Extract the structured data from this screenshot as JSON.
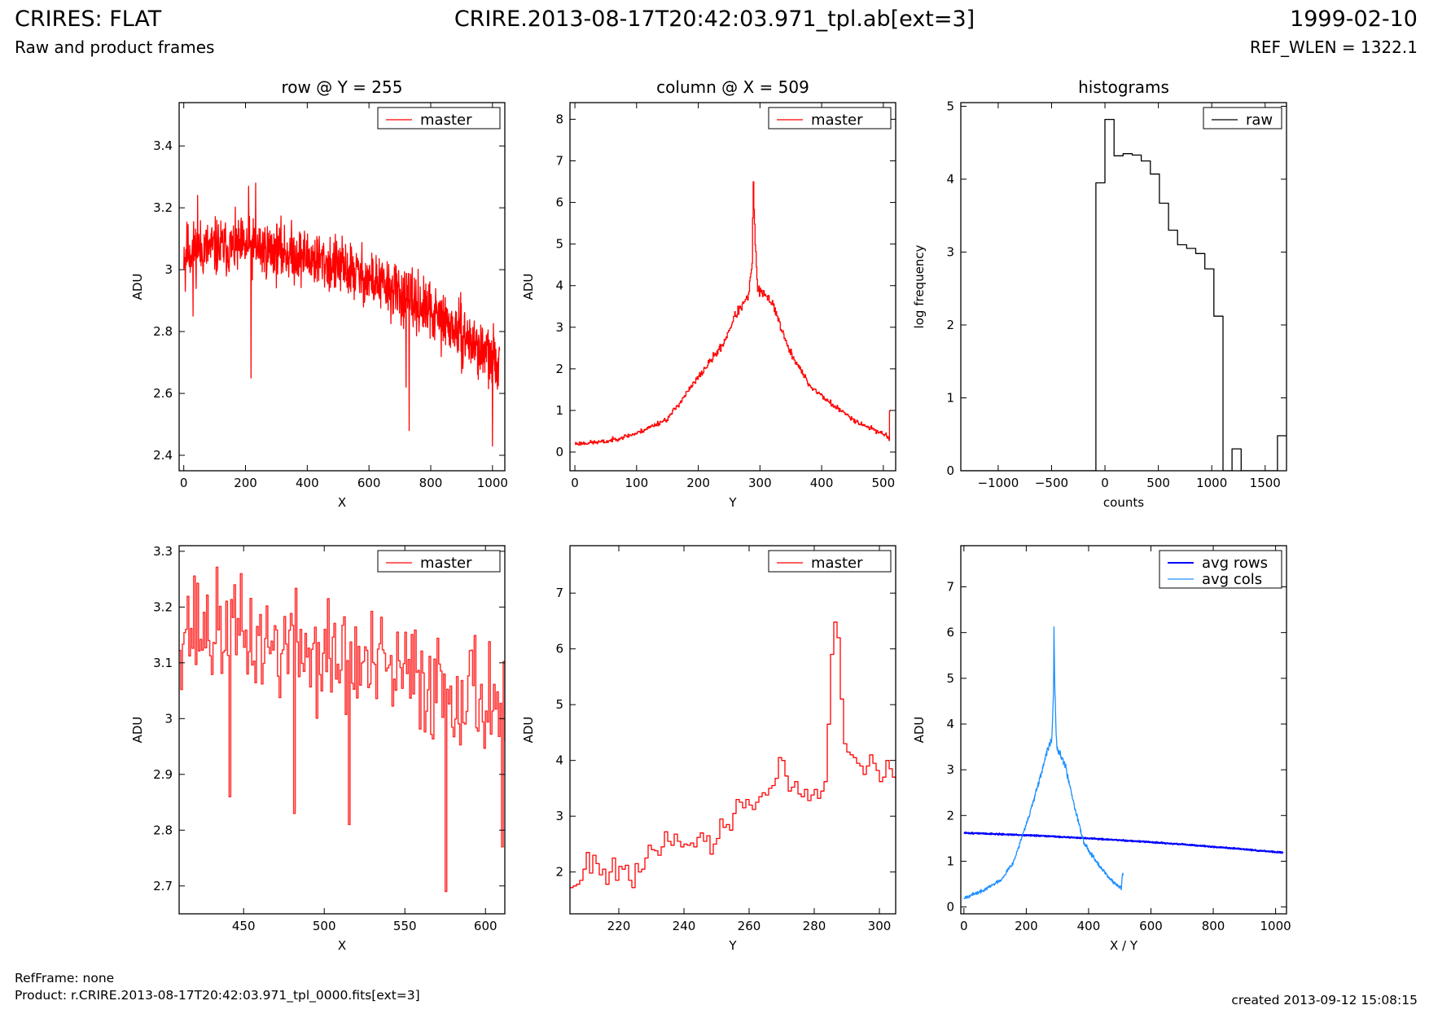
{
  "header": {
    "title_left": "CRIRES: FLAT",
    "title_center": "CRIRE.2013-08-17T20:42:03.971_tpl.ab[ext=3]",
    "title_right": "1999-02-10",
    "subtitle_left": "Raw and product frames",
    "subtitle_right": "REF_WLEN = 1322.1"
  },
  "footer": {
    "ref_frame": "RefFrame: none",
    "product": "Product: r.CRIRE.2013-08-17T20:42:03.971_tpl_0000.fits[ext=3]",
    "created": "created 2013-09-12 15:08:15"
  },
  "colors": {
    "red": "#ff0000",
    "black": "#000000",
    "blue": "#0000ff",
    "lightblue": "#1e90ff"
  },
  "chart_data": [
    {
      "id": "p1",
      "type": "line",
      "title": "row @ Y = 255",
      "xlabel": "X",
      "ylabel": "ADU",
      "xlim": [
        -15,
        1040
      ],
      "ylim": [
        2.35,
        3.54
      ],
      "xticks": [
        0,
        200,
        400,
        600,
        800,
        1000
      ],
      "yticks": [
        2.4,
        2.6,
        2.8,
        3.0,
        3.2,
        3.4
      ],
      "legend": "top-right",
      "series": [
        {
          "name": "master",
          "color": "#ff0000",
          "lw": 1.3,
          "gen": {
            "kind": "poly",
            "x0": 0,
            "x1": 1023,
            "n": 1024,
            "coef": [
              3.06,
              0.00015,
              -5e-07
            ],
            "noise": 0.08,
            "seed": 11,
            "spikes": [
              [
                5,
                2.93
              ],
              [
                30,
                2.85
              ],
              [
                45,
                3.24
              ],
              [
                210,
                3.27
              ],
              [
                218,
                2.65
              ],
              [
                233,
                3.28
              ],
              [
                720,
                2.62
              ],
              [
                730,
                2.48
              ],
              [
                1000,
                2.43
              ],
              [
                1022,
                2.75
              ]
            ]
          }
        }
      ]
    },
    {
      "id": "p2",
      "type": "line",
      "title": "column @ X = 509",
      "xlabel": "Y",
      "ylabel": "ADU",
      "xlim": [
        -8,
        520
      ],
      "ylim": [
        -0.45,
        8.4
      ],
      "xticks": [
        0,
        100,
        200,
        300,
        400,
        500
      ],
      "yticks": [
        0,
        1,
        2,
        3,
        4,
        5,
        6,
        7,
        8
      ],
      "legend": "top-right",
      "series": [
        {
          "name": "master",
          "color": "#ff0000",
          "lw": 1.3,
          "step": true,
          "gen": {
            "kind": "peak",
            "x0": 0,
            "x1": 511,
            "n": 512,
            "noise": 0.1,
            "seed": 23,
            "anchors": [
              [
                0,
                0.2
              ],
              [
                50,
                0.25
              ],
              [
                100,
                0.45
              ],
              [
                150,
                0.8
              ],
              [
                200,
                1.8
              ],
              [
                240,
                2.6
              ],
              [
                260,
                3.3
              ],
              [
                280,
                3.7
              ],
              [
                287,
                4.5
              ],
              [
                289,
                6.45
              ],
              [
                292,
                5.0
              ],
              [
                296,
                3.9
              ],
              [
                320,
                3.6
              ],
              [
                345,
                2.5
              ],
              [
                380,
                1.6
              ],
              [
                420,
                1.1
              ],
              [
                460,
                0.7
              ],
              [
                505,
                0.4
              ],
              [
                509,
                0.3
              ],
              [
                510,
                1.0
              ],
              [
                511,
                1.0
              ]
            ]
          }
        }
      ]
    },
    {
      "id": "p3",
      "type": "step",
      "title": "histograms",
      "xlabel": "counts",
      "ylabel": "log frequency",
      "xlim": [
        -1350,
        1700
      ],
      "ylim": [
        0,
        5.05
      ],
      "xticks": [
        -1000,
        -500,
        0,
        500,
        1000,
        1500
      ],
      "yticks": [
        0,
        1,
        2,
        3,
        4,
        5
      ],
      "legend": "top-right",
      "series": [
        {
          "name": "raw",
          "color": "#000000",
          "lw": 1.3,
          "x": [
            -1350,
            -85,
            -85,
            0,
            0,
            85,
            85,
            170,
            170,
            255,
            255,
            340,
            340,
            425,
            425,
            510,
            510,
            595,
            595,
            680,
            680,
            765,
            765,
            850,
            850,
            935,
            935,
            1020,
            1020,
            1105,
            1105,
            1190,
            1190,
            1275,
            1275,
            1360,
            1360,
            1615,
            1615,
            1700
          ],
          "y": [
            0,
            0,
            3.95,
            3.95,
            4.82,
            4.82,
            4.32,
            4.32,
            4.35,
            4.35,
            4.33,
            4.33,
            4.25,
            4.25,
            4.07,
            4.07,
            3.67,
            3.67,
            3.3,
            3.3,
            3.1,
            3.1,
            3.05,
            3.05,
            2.98,
            2.98,
            2.77,
            2.77,
            2.12,
            2.12,
            0,
            0,
            0.3,
            0.3,
            0,
            0,
            0,
            0,
            0.48,
            0.48
          ]
        }
      ]
    },
    {
      "id": "p4",
      "type": "line",
      "xlabel": "X",
      "ylabel": "ADU",
      "xlim": [
        410,
        612
      ],
      "ylim": [
        2.65,
        3.31
      ],
      "xticks": [
        450,
        500,
        550,
        600
      ],
      "yticks": [
        2.7,
        2.8,
        2.9,
        3.0,
        3.1,
        3.2,
        3.3
      ],
      "legend": "top-right",
      "series": [
        {
          "name": "master",
          "color": "#ff3030",
          "lw": 1.5,
          "step": true,
          "gen": {
            "kind": "poly",
            "x0": 410,
            "x1": 612,
            "n": 203,
            "coef": [
              3.17,
              -0.00068,
              0
            ],
            "noise": 0.09,
            "seed": 37,
            "xoffset": 410,
            "spikes": [
              [
                414,
                3.16
              ],
              [
                441,
                2.86
              ],
              [
                453,
                3.12
              ],
              [
                481,
                2.83
              ],
              [
                485,
                3.16
              ],
              [
                515,
                2.81
              ],
              [
                575,
                2.69
              ],
              [
                610,
                2.77
              ]
            ]
          }
        }
      ]
    },
    {
      "id": "p5",
      "type": "line",
      "xlabel": "Y",
      "ylabel": "ADU",
      "xlim": [
        205,
        305
      ],
      "ylim": [
        1.25,
        7.85
      ],
      "xticks": [
        220,
        240,
        260,
        280,
        300
      ],
      "yticks": [
        2,
        3,
        4,
        5,
        6,
        7
      ],
      "legend": "top-right",
      "series": [
        {
          "name": "master",
          "color": "#ff0000",
          "lw": 1.3,
          "step": true,
          "x": [
            205,
            206,
            207,
            208,
            209,
            210,
            211,
            212,
            213,
            214,
            215,
            216,
            217,
            218,
            219,
            220,
            221,
            222,
            223,
            224,
            225,
            226,
            227,
            228,
            229,
            230,
            231,
            232,
            233,
            234,
            235,
            236,
            237,
            238,
            239,
            240,
            241,
            242,
            243,
            244,
            245,
            246,
            247,
            248,
            249,
            250,
            251,
            252,
            253,
            254,
            255,
            256,
            257,
            258,
            259,
            260,
            261,
            262,
            263,
            264,
            265,
            266,
            267,
            268,
            269,
            270,
            271,
            272,
            273,
            274,
            275,
            276,
            277,
            278,
            279,
            280,
            281,
            282,
            283,
            284,
            285,
            286,
            287,
            288,
            289,
            290,
            291,
            292,
            293,
            294,
            295,
            296,
            297,
            298,
            299,
            300,
            301,
            302,
            303,
            304,
            305
          ],
          "y": [
            1.72,
            1.75,
            1.78,
            1.85,
            2.05,
            2.35,
            1.98,
            2.3,
            2.15,
            1.95,
            2.05,
            1.78,
            2.0,
            2.25,
            1.85,
            2.1,
            2.05,
            2.12,
            1.85,
            1.72,
            2.15,
            2.0,
            2.05,
            2.25,
            2.48,
            2.4,
            2.38,
            2.3,
            2.45,
            2.72,
            2.55,
            2.48,
            2.68,
            2.55,
            2.45,
            2.5,
            2.48,
            2.52,
            2.45,
            2.62,
            2.7,
            2.55,
            2.65,
            2.32,
            2.5,
            2.6,
            2.95,
            2.8,
            2.85,
            2.75,
            3.05,
            3.3,
            3.25,
            3.15,
            3.3,
            3.2,
            3.12,
            3.25,
            3.35,
            3.42,
            3.38,
            3.5,
            3.55,
            3.68,
            4.05,
            4.0,
            3.72,
            3.45,
            3.52,
            3.62,
            3.4,
            3.35,
            3.48,
            3.28,
            3.38,
            3.48,
            3.32,
            3.45,
            3.62,
            4.65,
            5.9,
            6.48,
            6.2,
            5.1,
            4.3,
            4.15,
            4.1,
            4.05,
            3.95,
            3.9,
            3.75,
            3.9,
            4.1,
            3.95,
            3.82,
            3.62,
            3.7,
            4.0,
            3.85,
            3.7,
            3.68
          ]
        }
      ]
    },
    {
      "id": "p6",
      "type": "line",
      "xlabel": "X / Y",
      "ylabel": "ADU",
      "xlim": [
        -10,
        1035
      ],
      "ylim": [
        -0.15,
        7.9
      ],
      "xticks": [
        0,
        200,
        400,
        600,
        800,
        1000
      ],
      "yticks": [
        0,
        1,
        2,
        3,
        4,
        5,
        6,
        7
      ],
      "legend": "top-right",
      "series": [
        {
          "name": "avg rows",
          "color": "#0000ff",
          "lw": 2.0,
          "gen": {
            "kind": "poly",
            "x0": 0,
            "x1": 1023,
            "n": 1024,
            "coef": [
              1.62,
              -0.00022,
              -2e-07
            ],
            "noise": 0.012,
            "seed": 51
          }
        },
        {
          "name": "avg cols",
          "color": "#1e90ff",
          "lw": 1.3,
          "gen": {
            "kind": "peak",
            "x0": 0,
            "x1": 511,
            "n": 512,
            "noise": 0.07,
            "seed": 67,
            "anchors": [
              [
                0,
                0.2
              ],
              [
                60,
                0.35
              ],
              [
                120,
                0.6
              ],
              [
                160,
                1.0
              ],
              [
                200,
                1.8
              ],
              [
                240,
                2.7
              ],
              [
                265,
                3.35
              ],
              [
                282,
                3.7
              ],
              [
                287,
                4.6
              ],
              [
                289,
                6.1
              ],
              [
                292,
                4.7
              ],
              [
                298,
                3.5
              ],
              [
                325,
                3.1
              ],
              [
                355,
                2.2
              ],
              [
                385,
                1.4
              ],
              [
                430,
                0.95
              ],
              [
                470,
                0.6
              ],
              [
                505,
                0.4
              ],
              [
                508,
                0.7
              ],
              [
                511,
                0.7
              ]
            ]
          }
        }
      ]
    }
  ]
}
